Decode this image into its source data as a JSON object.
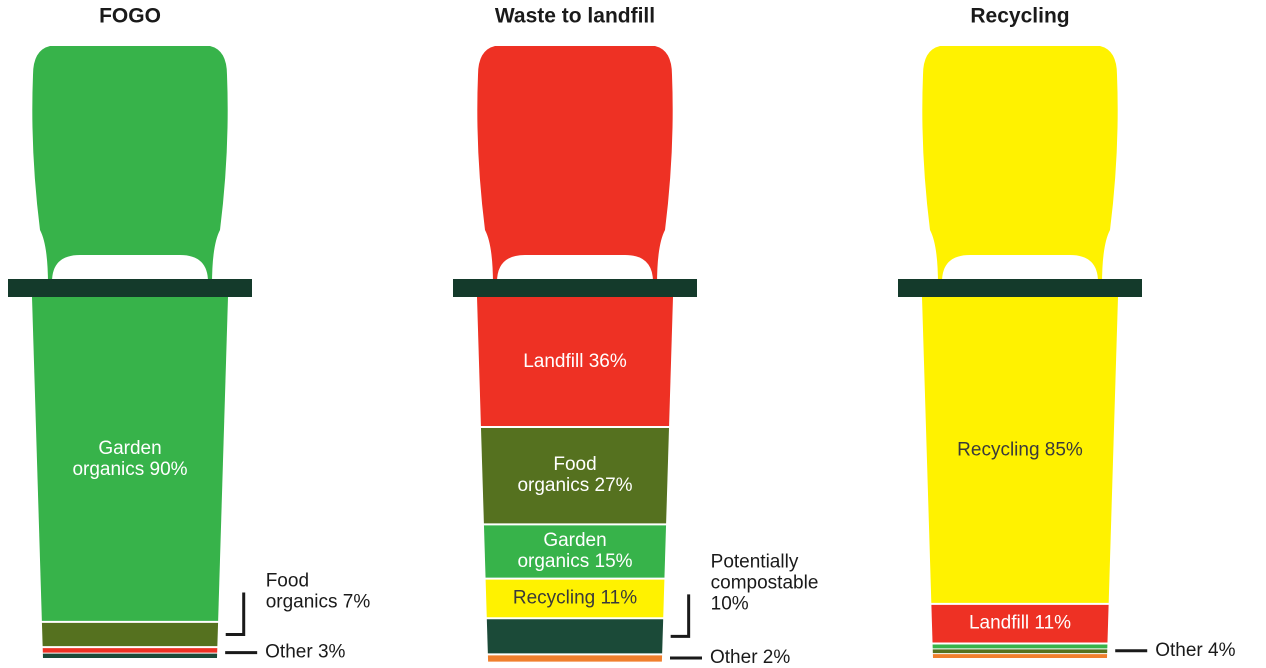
{
  "chart_data": [
    {
      "type": "bin",
      "title": "FOGO",
      "segments": [
        {
          "label": [
            "Garden",
            "organics 90%"
          ],
          "value": 90,
          "color": "#37b34a",
          "label_color": "#ffffff"
        },
        {
          "label": [
            "Food",
            "organics 7%"
          ],
          "value": 7,
          "color": "#55711f"
        },
        {
          "label": [
            "Other 3%"
          ],
          "value": 3,
          "colors": [
            "#ee3124",
            "#1b4a38"
          ]
        }
      ]
    },
    {
      "type": "bin",
      "title": "Waste to landfill",
      "segments": [
        {
          "label": [
            "Landfill 36%"
          ],
          "value": 36,
          "color": "#ee3124",
          "label_color": "#ffffff"
        },
        {
          "label": [
            "Food",
            "organics 27%"
          ],
          "value": 27,
          "color": "#55711f",
          "label_color": "#ffffff"
        },
        {
          "label": [
            "Garden",
            "organics 15%"
          ],
          "value": 15,
          "color": "#37b34a",
          "label_color": "#ffffff"
        },
        {
          "label": [
            "Recycling 11%"
          ],
          "value": 11,
          "color": "#fff200",
          "label_color": "#3a3a3a"
        },
        {
          "label": [
            "Potentially",
            "compostable",
            "10%"
          ],
          "value": 10,
          "color": "#1b4a38"
        },
        {
          "label": [
            "Other 2%"
          ],
          "value": 2,
          "color": "#f07f2d"
        }
      ]
    },
    {
      "type": "bin",
      "title": "Recycling",
      "segments": [
        {
          "label": [
            "Recycling 85%"
          ],
          "value": 85,
          "color": "#fff200",
          "label_color": "#3a3a3a"
        },
        {
          "label": [
            "Landfill 11%"
          ],
          "value": 11,
          "color": "#ee3124",
          "label_color": "#ffffff"
        },
        {
          "label": [
            "Other 4%"
          ],
          "value": 4,
          "colors": [
            "#37b34a",
            "#55711f",
            "#f07f2d"
          ]
        }
      ]
    }
  ]
}
